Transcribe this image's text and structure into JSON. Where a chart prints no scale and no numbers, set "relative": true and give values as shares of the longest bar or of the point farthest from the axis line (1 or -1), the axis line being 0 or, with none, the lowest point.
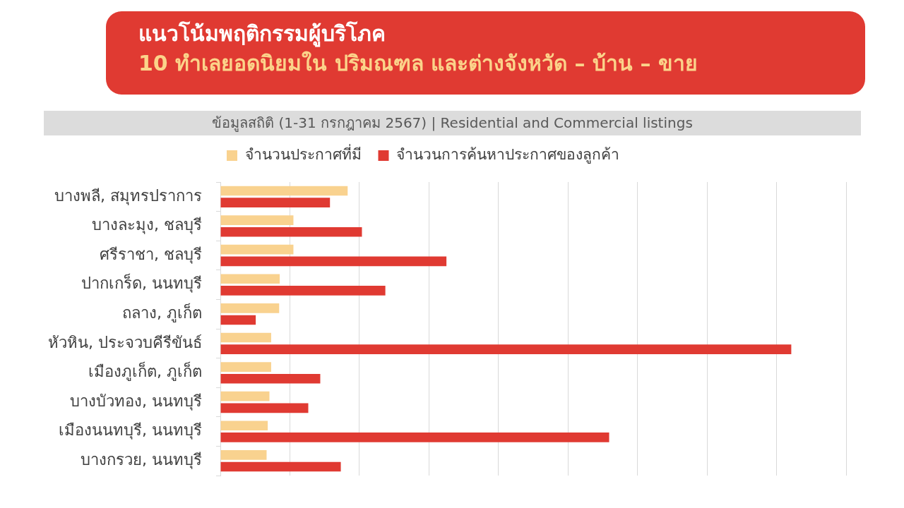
{
  "chart_data": {
    "type": "bar",
    "orientation": "horizontal",
    "relative": true,
    "title": "แนวโน้มพฤติกรรมผู้บริโภค",
    "subtitle": "10 ทำเลยอดนิยมใน ปริมณฑล และต่างจังหวัด – บ้าน – ขาย",
    "annotations": [
      "ข้อมูลสถิติ (1-31 กรกฎาคม 2567) | Residential and Commercial listings"
    ],
    "categories": [
      "บางพลี, สมุทรปราการ",
      "บางละมุง, ชลบุรี",
      "ศรีราชา, ชลบุรี",
      "ปากเกร็ด, นนทบุรี",
      "ถลาง, ภูเก็ต",
      "หัวหิน, ประจวบคีรีขันธ์",
      "เมืองภูเก็ต, ภูเก็ต",
      "บางบัวทอง, นนทบุรี",
      "เมืองนนทบุรี, นนทบุรี",
      "บางกรวย, นนทบุรี"
    ],
    "series": [
      {
        "name": "จำนวนประกาศที่มี",
        "color": "#f9d28f",
        "values": [
          0.223,
          0.128,
          0.128,
          0.104,
          0.103,
          0.089,
          0.089,
          0.086,
          0.083,
          0.081
        ]
      },
      {
        "name": "จำนวนการค้นหาประกาศของลูกค้า",
        "color": "#e03a32",
        "values": [
          0.192,
          0.248,
          0.396,
          0.289,
          0.062,
          1,
          0.175,
          0.154,
          0.681,
          0.211
        ]
      }
    ],
    "grid": "x",
    "legend": "top"
  }
}
